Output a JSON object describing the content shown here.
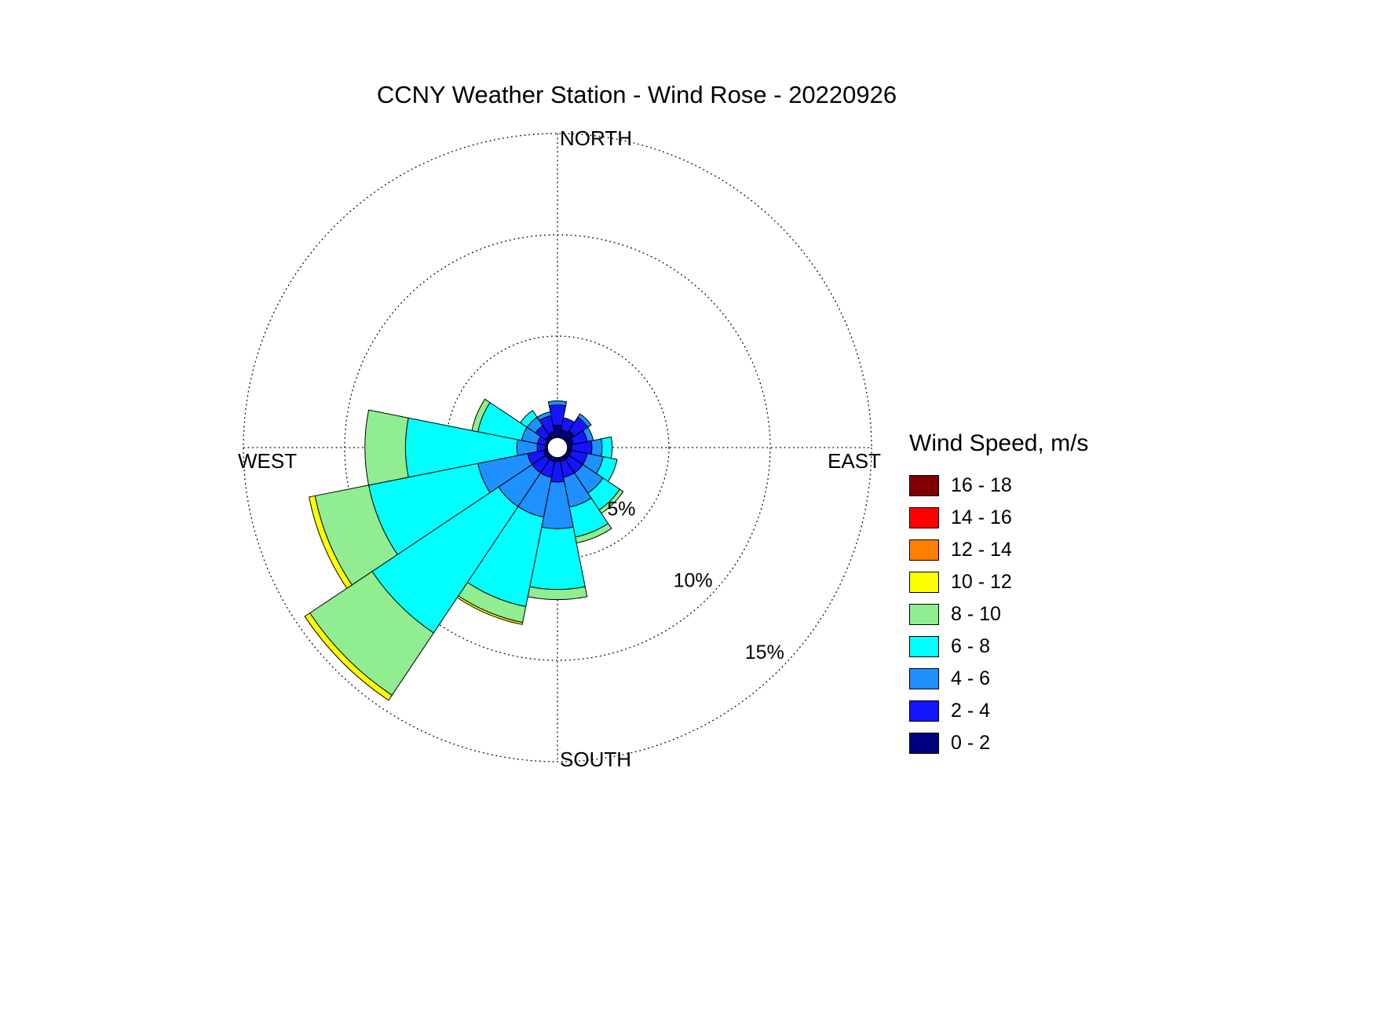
{
  "page": {
    "background": "#FFFFFF"
  },
  "chart_data": {
    "type": "windrose",
    "title": "CCNY Weather Station - Wind Rose - 20220926",
    "legend_title": "Wind Speed, m/s",
    "units": "m/s",
    "grid": "dotted",
    "legend_position": "right",
    "compass_labels": {
      "north": "NORTH",
      "east": "EAST",
      "south": "SOUTH",
      "west": "WEST"
    },
    "ring_ticks": [
      {
        "pct": 5,
        "label": "5%"
      },
      {
        "pct": 10,
        "label": "10%"
      },
      {
        "pct": 15,
        "label": "15%"
      }
    ],
    "max_ring_pct": 15,
    "speed_bins_low_to_high": [
      {
        "label": "0 - 2",
        "color": "#000080"
      },
      {
        "label": "2 - 4",
        "color": "#1414FF"
      },
      {
        "label": "4 - 6",
        "color": "#1E90FF"
      },
      {
        "label": "6 - 8",
        "color": "#00FFFF"
      },
      {
        "label": "8 - 10",
        "color": "#90EE90"
      },
      {
        "label": "10 - 12",
        "color": "#FFFF00"
      },
      {
        "label": "12 - 14",
        "color": "#FF8000"
      },
      {
        "label": "14 - 16",
        "color": "#FF0000"
      },
      {
        "label": "16 - 18",
        "color": "#800000"
      }
    ],
    "directions": [
      "N",
      "NNE",
      "NE",
      "ENE",
      "E",
      "ESE",
      "SE",
      "SSE",
      "S",
      "SSW",
      "SW",
      "WSW",
      "W",
      "WNW",
      "NW",
      "NNW"
    ],
    "frequencies_pct": {
      "N": [
        0.6,
        1.0,
        0.2,
        0,
        0,
        0,
        0,
        0,
        0
      ],
      "NNE": [
        0.4,
        0.6,
        0,
        0,
        0,
        0,
        0,
        0,
        0
      ],
      "NE": [
        0.5,
        0.8,
        0.2,
        0,
        0,
        0,
        0,
        0,
        0
      ],
      "ENE": [
        0.3,
        0.7,
        0.3,
        0,
        0,
        0,
        0,
        0,
        0
      ],
      "E": [
        0.2,
        1.0,
        0.5,
        0.5,
        0,
        0,
        0,
        0,
        0
      ],
      "ESE": [
        0.2,
        0.8,
        0.8,
        0.7,
        0,
        0,
        0,
        0,
        0
      ],
      "SE": [
        0.2,
        0.8,
        1.2,
        1.0,
        0.2,
        0,
        0,
        0,
        0
      ],
      "SSE": [
        0.2,
        0.8,
        1.5,
        1.5,
        0.3,
        0,
        0,
        0,
        0
      ],
      "S": [
        0.2,
        1.0,
        2.3,
        3.0,
        0.5,
        0,
        0,
        0,
        0
      ],
      "SSW": [
        0.2,
        0.8,
        2.0,
        4.5,
        0.8,
        0.1,
        0,
        0,
        0
      ],
      "SW": [
        0.2,
        0.8,
        2.0,
        7.5,
        3.7,
        0.3,
        0,
        0,
        0
      ],
      "WSW": [
        0.2,
        0.8,
        2.5,
        5.5,
        2.7,
        0.3,
        0,
        0,
        0
      ],
      "W": [
        0.1,
        0.4,
        1.0,
        5.5,
        2.0,
        0,
        0,
        0,
        0
      ],
      "WNW": [
        0.1,
        0.4,
        0.8,
        2.2,
        0.3,
        0,
        0,
        0,
        0
      ],
      "NW": [
        0.2,
        0.6,
        0.5,
        0.4,
        0,
        0,
        0,
        0,
        0
      ],
      "NNW": [
        0.3,
        0.8,
        0.2,
        0,
        0,
        0,
        0,
        0,
        0
      ]
    }
  }
}
